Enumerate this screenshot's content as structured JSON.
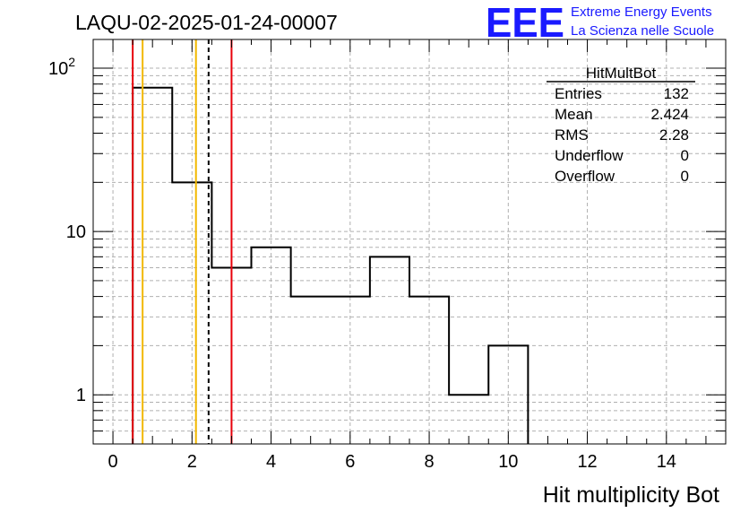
{
  "header": {
    "run_title": "LAQU-02-2025-01-24-00007",
    "logo_mark": "EEE",
    "logo_line1": "Extreme Energy Events",
    "logo_line2": "La Scienza nelle Scuole"
  },
  "stats_box": {
    "name": "HitMultBot",
    "rows": [
      {
        "label": "Entries",
        "value": "132"
      },
      {
        "label": "Mean",
        "value": "2.424"
      },
      {
        "label": "RMS",
        "value": "2.28"
      },
      {
        "label": "Underflow",
        "value": "0"
      },
      {
        "label": "Overflow",
        "value": "0"
      }
    ]
  },
  "chart_data": {
    "type": "histogram",
    "xlabel": "Hit multiplicity Bot",
    "ylabel": "",
    "xlim": [
      -0.5,
      15.5
    ],
    "ylim": [
      0.5,
      150
    ],
    "y_scale": "log",
    "grid": true,
    "x_ticks": [
      0,
      2,
      4,
      6,
      8,
      10,
      12,
      14
    ],
    "y_ticks": [
      {
        "value": 1,
        "label": "1"
      },
      {
        "value": 10,
        "label": "10"
      },
      {
        "value": 100,
        "label": "10",
        "exponent": "2"
      }
    ],
    "bins": {
      "edges": [
        0.5,
        1.5,
        2.5,
        3.5,
        4.5,
        5.5,
        6.5,
        7.5,
        8.5,
        9.5,
        10.5
      ],
      "counts": [
        76,
        20,
        6,
        8,
        4,
        4,
        7,
        4,
        1,
        2
      ]
    },
    "markers": [
      {
        "x": 0.5,
        "color": "#e8000b",
        "style": "solid"
      },
      {
        "x": 0.75,
        "color": "#f2b800",
        "style": "solid"
      },
      {
        "x": 2.1,
        "color": "#f2b800",
        "style": "solid"
      },
      {
        "x": 2.42,
        "color": "#000000",
        "style": "dashed"
      },
      {
        "x": 3.0,
        "color": "#e8000b",
        "style": "solid"
      }
    ]
  }
}
